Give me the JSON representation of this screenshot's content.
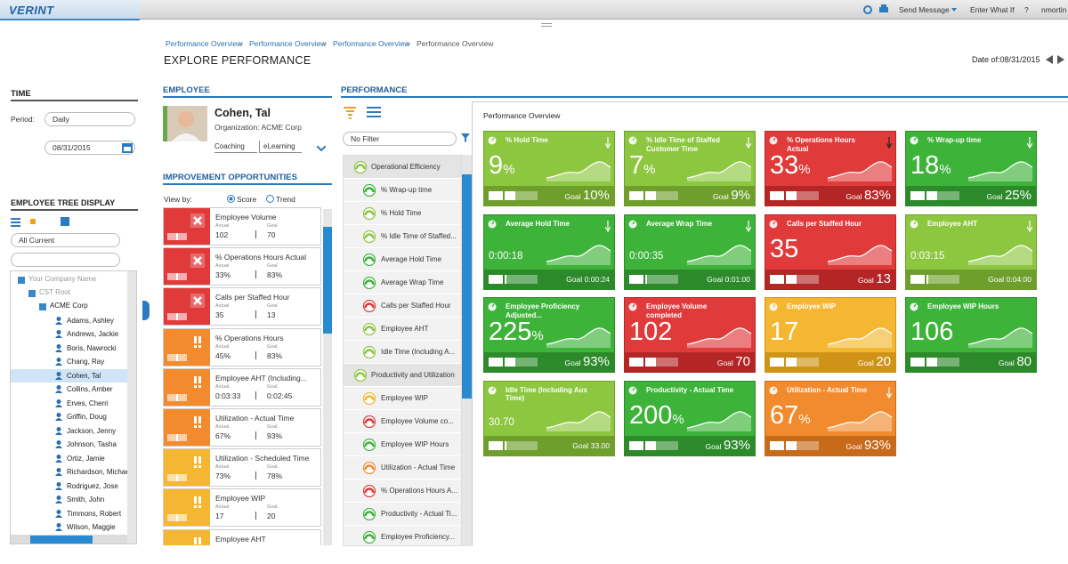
{
  "header": {
    "brand": "VERINT",
    "actions": [
      "Send Message",
      "Enter What If",
      "?",
      "nmortin"
    ]
  },
  "breadcrumbs": [
    "Performance Overview",
    "Performance Overview",
    "Performance Overview",
    "Performance Overview"
  ],
  "breadcrumb_separator": ">",
  "page_title": "EXPLORE PERFORMANCE",
  "date_label": "Date of:08/31/2015",
  "time_panel": {
    "title": "TIME",
    "period_label": "Period:",
    "period": "Daily",
    "date": "08/31/2015"
  },
  "tree": {
    "title": "EMPLOYEE TREE DISPLAY",
    "filter": "All Current",
    "org_nodes": [
      "Your Company Name",
      "CST Root",
      "ACME Corp"
    ],
    "employees": [
      "Adams, Ashley",
      "Andrews, Jackie",
      "Boris, Nawrocki",
      "Chang, Ray",
      "Cohen, Tal",
      "Collins, Amber",
      "Erves, Cherri",
      "Griffin, Doug",
      "Jackson, Jenny",
      "Johnson, Tasha",
      "Ortiz, Jamie",
      "Richardson, Michae",
      "Rodriguez, Jose",
      "Smith, John",
      "Timmons, Robert",
      "Wilson, Maggie"
    ]
  },
  "employee": {
    "section": "EMPLOYEE",
    "name": "Cohen, Tal",
    "organization": "Organization: ACME Corp",
    "tabs": [
      "Coaching",
      "eLearning"
    ]
  },
  "improvement": {
    "title": "IMPROVEMENT OPPORTUNITIES",
    "view_by": "View by:",
    "options": [
      "Score",
      "Trend"
    ],
    "actual_label": "Actual",
    "goal_label": "Goal",
    "items": [
      {
        "name": "Employee Volume",
        "actual": "102",
        "goal": "70",
        "color": "#e03a3a"
      },
      {
        "name": "% Operations Hours Actual",
        "actual": "33%",
        "goal": "83%",
        "color": "#e03a3a"
      },
      {
        "name": "Calls per Staffed Hour",
        "actual": "35",
        "goal": "13",
        "color": "#e03a3a"
      },
      {
        "name": "% Operations Hours",
        "actual": "45%",
        "goal": "83%",
        "color": "#f28a2e"
      },
      {
        "name": "Employee AHT (Including...",
        "actual": "0:03:33",
        "goal": "0:02:45",
        "color": "#f28a2e"
      },
      {
        "name": "Utilization - Actual Time",
        "actual": "67%",
        "goal": "93%",
        "color": "#f28a2e"
      },
      {
        "name": "Utilization - Scheduled Time",
        "actual": "73%",
        "goal": "78%",
        "color": "#f5b731"
      },
      {
        "name": "Employee WIP",
        "actual": "17",
        "goal": "20",
        "color": "#f5b731"
      },
      {
        "name": "Employee AHT",
        "color": "#f5b731"
      }
    ]
  },
  "performance": {
    "title": "PERFORMANCE",
    "filter": "No Filter",
    "groups": [
      {
        "name": "Operational Efficiency",
        "items": [
          {
            "name": "% Wrap-up time",
            "color": "#3db33a"
          },
          {
            "name": "% Hold Time",
            "color": "#8dc63f"
          },
          {
            "name": "% Idle Time of Staffed...",
            "color": "#8dc63f"
          },
          {
            "name": "Average Hold Time",
            "color": "#3db33a"
          },
          {
            "name": "Average Wrap Time",
            "color": "#3db33a"
          },
          {
            "name": "Calls per Staffed Hour",
            "color": "#e03a3a"
          },
          {
            "name": "Employee AHT",
            "color": "#8dc63f"
          },
          {
            "name": "Idle Time (Including A...",
            "color": "#8dc63f"
          }
        ]
      },
      {
        "name": "Productivity and Utilization",
        "items": [
          {
            "name": "Employee WIP",
            "color": "#f5b731"
          },
          {
            "name": "Employee Volume co...",
            "color": "#e03a3a"
          },
          {
            "name": "Employee WIP Hours",
            "color": "#3db33a"
          },
          {
            "name": "Utilization - Actual Time",
            "color": "#f28a2e"
          },
          {
            "name": "% Operations Hours A...",
            "color": "#e03a3a"
          },
          {
            "name": "Productivity - Actual Ti...",
            "color": "#3db33a"
          },
          {
            "name": "Employee Proficiency...",
            "color": "#3db33a"
          }
        ]
      }
    ]
  },
  "overview": {
    "title": "Performance Overview",
    "goal_label": "Goal",
    "tiles": [
      {
        "title": "% Hold Time",
        "value": "9",
        "unit": "%",
        "goal": "10%",
        "color": "#8dc63f",
        "trend": "down"
      },
      {
        "title": "% Idle Time of Staffed Customer Time",
        "value": "7",
        "unit": "%",
        "goal": "9%",
        "color": "#8dc63f",
        "trend": "down"
      },
      {
        "title": "% Operations Hours Actual",
        "value": "33",
        "unit": "%",
        "goal": "83%",
        "color": "#e03a3a",
        "trend": "down"
      },
      {
        "title": "% Wrap-up time",
        "value": "18",
        "unit": "%",
        "goal": "25%",
        "color": "#3db33a",
        "trend": "down"
      },
      {
        "title": "Average Hold Time",
        "value": "0:00:18",
        "goal": "0:00:24",
        "color": "#3db33a",
        "trend": "down"
      },
      {
        "title": "Average Wrap Time",
        "value": "0:00:35",
        "goal": "0:01:00",
        "color": "#3db33a",
        "trend": "down"
      },
      {
        "title": "Calls per Staffed Hour",
        "value": "35",
        "goal": "13",
        "color": "#e03a3a"
      },
      {
        "title": "Employee AHT",
        "value": "0:03:15",
        "goal": "0:04:00",
        "color": "#8dc63f",
        "trend": "down"
      },
      {
        "title": "Employee Proficiency Adjusted...",
        "value": "225",
        "unit": "%",
        "goal": "93%",
        "color": "#3db33a"
      },
      {
        "title": "Employee Volume completed",
        "value": "102",
        "goal": "70",
        "color": "#e03a3a"
      },
      {
        "title": "Employee WIP",
        "value": "17",
        "goal": "20",
        "color": "#f5b731"
      },
      {
        "title": "Employee WIP Hours",
        "value": "106",
        "goal": "80",
        "color": "#3db33a"
      },
      {
        "title": "Idle Time (Including Aux Time)",
        "value": "30.70",
        "goal": "33.00",
        "color": "#8dc63f"
      },
      {
        "title": "Productivity - Actual Time",
        "value": "200",
        "unit": "%",
        "goal": "93%",
        "color": "#3db33a"
      },
      {
        "title": "Utilization - Actual Time",
        "value": "67",
        "unit": "%",
        "goal": "93%",
        "color": "#f28a2e",
        "trend": "down"
      }
    ]
  }
}
